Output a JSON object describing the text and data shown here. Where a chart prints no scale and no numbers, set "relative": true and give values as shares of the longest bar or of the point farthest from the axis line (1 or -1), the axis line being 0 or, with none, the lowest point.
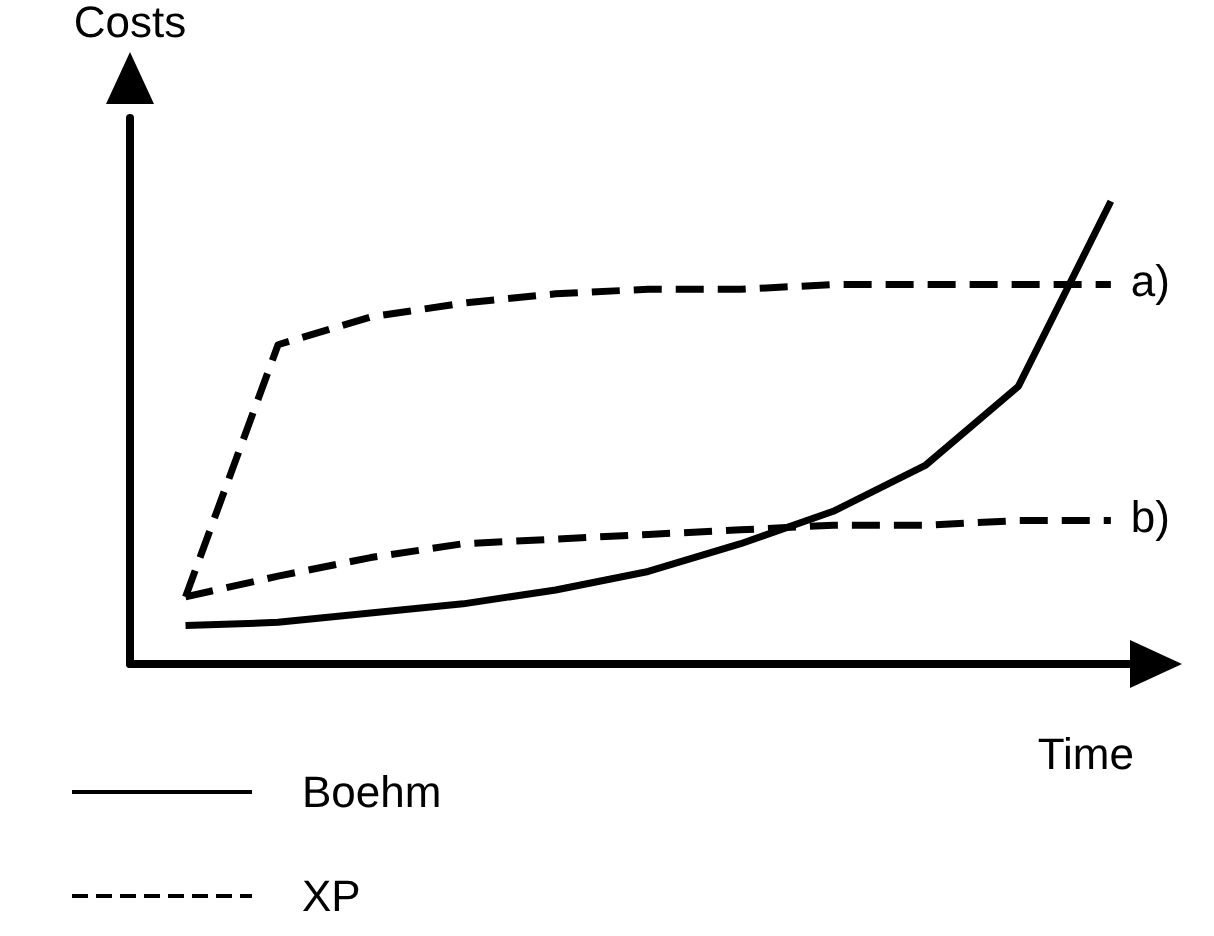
{
  "chart_data": {
    "type": "line",
    "relative": true,
    "xlabel": "Time",
    "ylabel": "Costs",
    "categories": [
      null,
      null,
      null,
      null,
      null,
      null,
      null,
      null,
      null,
      null,
      null
    ],
    "series": [
      {
        "name": "Boehm",
        "color": "#000000",
        "line_style": "solid",
        "values": [
          0.083,
          0.09,
          0.11,
          0.13,
          0.16,
          0.2,
          0.26,
          0.33,
          0.43,
          0.6,
          1
        ]
      },
      {
        "name": "XP",
        "color": "#000000",
        "line_style": "dashed",
        "values": [
          0.145,
          0.69,
          0.75,
          0.78,
          0.8,
          0.81,
          0.81,
          0.82,
          0.82,
          0.82,
          0.82
        ]
      },
      {
        "color": "#000000",
        "line_style": "dashed",
        "values": [
          0.145,
          0.19,
          0.23,
          0.26,
          0.27,
          0.28,
          0.29,
          0.3,
          0.3,
          0.31,
          0.31
        ]
      }
    ],
    "annotations": [
      "a)",
      "b)"
    ],
    "marker": "none",
    "grid": false,
    "legend": "bottom left"
  }
}
